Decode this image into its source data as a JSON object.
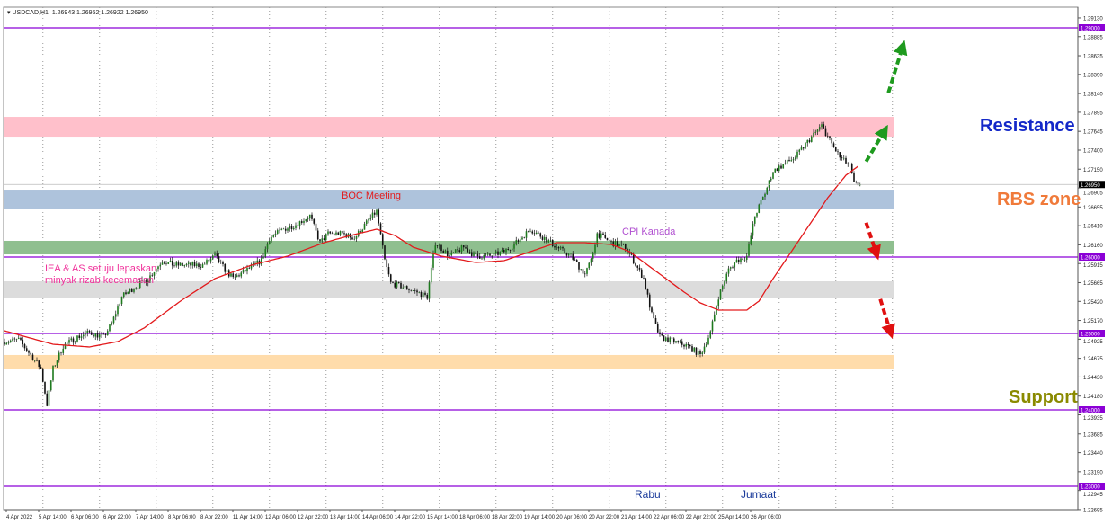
{
  "header": {
    "symbol": "USDCAD,H1",
    "ohlc": "1.26943 1.26952 1.26922 1.26950"
  },
  "colors": {
    "bull": "#1e7a1e",
    "bear": "#111111",
    "ma": "#e31a1c",
    "level": "#8b00d6",
    "resistance_zone": "#ffc0cb",
    "rbs_zone": "#aec3dc",
    "green_zone": "#8fbf8f",
    "grey_zone": "#dcdcdc",
    "support_zone": "#ffdcab",
    "resistance_text": "#1428c8",
    "rbs_text": "#f07a3a",
    "support_text": "#8a8a00"
  },
  "labels": {
    "resistance": "Resistance",
    "rbs": "RBS zone",
    "support": "Support",
    "boc": "BOC Meeting",
    "cpi": "CPI Kanada",
    "iea1": "IEA & AS setuju lepaskan",
    "iea2": "minyak rizab kecemasan",
    "rabu": "Rabu",
    "jumaat": "Jumaat"
  },
  "chart_data": {
    "type": "candlestick",
    "title": "USDCAD,H1",
    "ylim": [
      1.22695,
      1.2913
    ],
    "y_ticks": [
      "1.29130",
      "1.28885",
      "1.28635",
      "1.28390",
      "1.28140",
      "1.27895",
      "1.27645",
      "1.27400",
      "1.27150",
      "1.26905",
      "1.26655",
      "1.26410",
      "1.26160",
      "1.25915",
      "1.25665",
      "1.25420",
      "1.25170",
      "1.24925",
      "1.24675",
      "1.24430",
      "1.24180",
      "1.23935",
      "1.23685",
      "1.23440",
      "1.23190",
      "1.22945",
      "1.22695"
    ],
    "x_ticks": [
      "4 Apr 2022",
      "5 Apr 14:00",
      "6 Apr 06:00",
      "6 Apr 22:00",
      "7 Apr 14:00",
      "8 Apr 06:00",
      "8 Apr 22:00",
      "11 Apr 14:00",
      "12 Apr 06:00",
      "12 Apr 22:00",
      "13 Apr 14:00",
      "14 Apr 06:00",
      "14 Apr 22:00",
      "15 Apr 14:00",
      "18 Apr 06:00",
      "18 Apr 22:00",
      "19 Apr 14:00",
      "20 Apr 06:00",
      "20 Apr 22:00",
      "21 Apr 14:00",
      "22 Apr 06:00",
      "22 Apr 22:00",
      "25 Apr 14:00",
      "26 Apr 06:00"
    ],
    "bars_per_tick": 16,
    "current_price": "1.26950",
    "levels": [
      "1.29000",
      "1.26000",
      "1.25000",
      "1.24000",
      "1.23000"
    ],
    "zones": [
      {
        "name": "resistance",
        "from": 1.27576,
        "to": 1.27835
      },
      {
        "name": "rbs",
        "from": 1.26624,
        "to": 1.26882
      },
      {
        "name": "green",
        "from": 1.26035,
        "to": 1.26212
      },
      {
        "name": "grey",
        "from": 1.25459,
        "to": 1.25682
      },
      {
        "name": "support",
        "from": 1.24541,
        "to": 1.24718
      }
    ],
    "close_path": [
      [
        0,
        1.24894
      ],
      [
        7,
        1.24918
      ],
      [
        13,
        1.24718
      ],
      [
        18,
        1.24541
      ],
      [
        21,
        1.24071
      ],
      [
        24,
        1.24541
      ],
      [
        29,
        1.24835
      ],
      [
        36,
        1.24953
      ],
      [
        42,
        1.25012
      ],
      [
        49,
        1.24953
      ],
      [
        53,
        1.25129
      ],
      [
        58,
        1.25482
      ],
      [
        64,
        1.256
      ],
      [
        71,
        1.25718
      ],
      [
        78,
        1.25953
      ],
      [
        84,
        1.25894
      ],
      [
        91,
        1.25894
      ],
      [
        98,
        1.25894
      ],
      [
        104,
        1.26012
      ],
      [
        109,
        1.25835
      ],
      [
        113,
        1.25718
      ],
      [
        120,
        1.25835
      ],
      [
        127,
        1.25953
      ],
      [
        131,
        1.26247
      ],
      [
        138,
        1.26365
      ],
      [
        144,
        1.26424
      ],
      [
        151,
        1.26541
      ],
      [
        156,
        1.26188
      ],
      [
        160,
        1.26306
      ],
      [
        167,
        1.26306
      ],
      [
        173,
        1.26247
      ],
      [
        180,
        1.26482
      ],
      [
        184,
        1.266
      ],
      [
        188,
        1.25953
      ],
      [
        191,
        1.25659
      ],
      [
        198,
        1.256
      ],
      [
        204,
        1.25541
      ],
      [
        209,
        1.25482
      ],
      [
        213,
        1.26188
      ],
      [
        220,
        1.26012
      ],
      [
        227,
        1.26129
      ],
      [
        233,
        1.26012
      ],
      [
        240,
        1.26012
      ],
      [
        247,
        1.26071
      ],
      [
        253,
        1.26188
      ],
      [
        260,
        1.26365
      ],
      [
        267,
        1.26247
      ],
      [
        273,
        1.26129
      ],
      [
        280,
        1.26012
      ],
      [
        287,
        1.25776
      ],
      [
        290,
        1.25953
      ],
      [
        293,
        1.26306
      ],
      [
        300,
        1.26188
      ],
      [
        307,
        1.26129
      ],
      [
        311,
        1.25953
      ],
      [
        316,
        1.25718
      ],
      [
        320,
        1.25247
      ],
      [
        324,
        1.24953
      ],
      [
        331,
        1.24894
      ],
      [
        338,
        1.24835
      ],
      [
        344,
        1.24718
      ],
      [
        349,
        1.25012
      ],
      [
        353,
        1.25482
      ],
      [
        358,
        1.25835
      ],
      [
        362,
        1.25953
      ],
      [
        367,
        1.26012
      ],
      [
        371,
        1.26541
      ],
      [
        376,
        1.26835
      ],
      [
        380,
        1.27129
      ],
      [
        384,
        1.27188
      ],
      [
        391,
        1.27306
      ],
      [
        398,
        1.27541
      ],
      [
        404,
        1.27718
      ],
      [
        409,
        1.27482
      ],
      [
        413,
        1.27306
      ],
      [
        418,
        1.27188
      ],
      [
        420,
        1.26953
      ],
      [
        423,
        1.2695
      ]
    ],
    "ma_path": [
      [
        0,
        1.25035
      ],
      [
        11,
        1.24953
      ],
      [
        24,
        1.24859
      ],
      [
        42,
        1.24824
      ],
      [
        56,
        1.24894
      ],
      [
        69,
        1.25071
      ],
      [
        87,
        1.25424
      ],
      [
        104,
        1.25718
      ],
      [
        122,
        1.25894
      ],
      [
        140,
        1.26012
      ],
      [
        158,
        1.26188
      ],
      [
        171,
        1.26282
      ],
      [
        184,
        1.26365
      ],
      [
        193,
        1.26282
      ],
      [
        202,
        1.26129
      ],
      [
        216,
        1.26012
      ],
      [
        233,
        1.25929
      ],
      [
        247,
        1.25953
      ],
      [
        260,
        1.26071
      ],
      [
        273,
        1.26188
      ],
      [
        287,
        1.26188
      ],
      [
        300,
        1.26165
      ],
      [
        309,
        1.26071
      ],
      [
        318,
        1.25894
      ],
      [
        327,
        1.25718
      ],
      [
        336,
        1.25541
      ],
      [
        344,
        1.254
      ],
      [
        353,
        1.25306
      ],
      [
        367,
        1.25306
      ],
      [
        373,
        1.25424
      ],
      [
        380,
        1.25718
      ],
      [
        389,
        1.26071
      ],
      [
        398,
        1.26424
      ],
      [
        407,
        1.26776
      ],
      [
        416,
        1.27071
      ],
      [
        422,
        1.27188
      ]
    ],
    "arrows": [
      {
        "color": "green",
        "from": [
          426,
          1.2725
        ],
        "to": [
          435,
          1.2765
        ]
      },
      {
        "color": "green",
        "from": [
          437,
          1.2815
        ],
        "to": [
          444,
          1.2875
        ]
      },
      {
        "color": "red",
        "from": [
          426,
          1.2645
        ],
        "to": [
          431,
          1.2605
        ]
      },
      {
        "color": "red",
        "from": [
          433,
          1.2545
        ],
        "to": [
          438,
          1.2502
        ]
      }
    ]
  }
}
